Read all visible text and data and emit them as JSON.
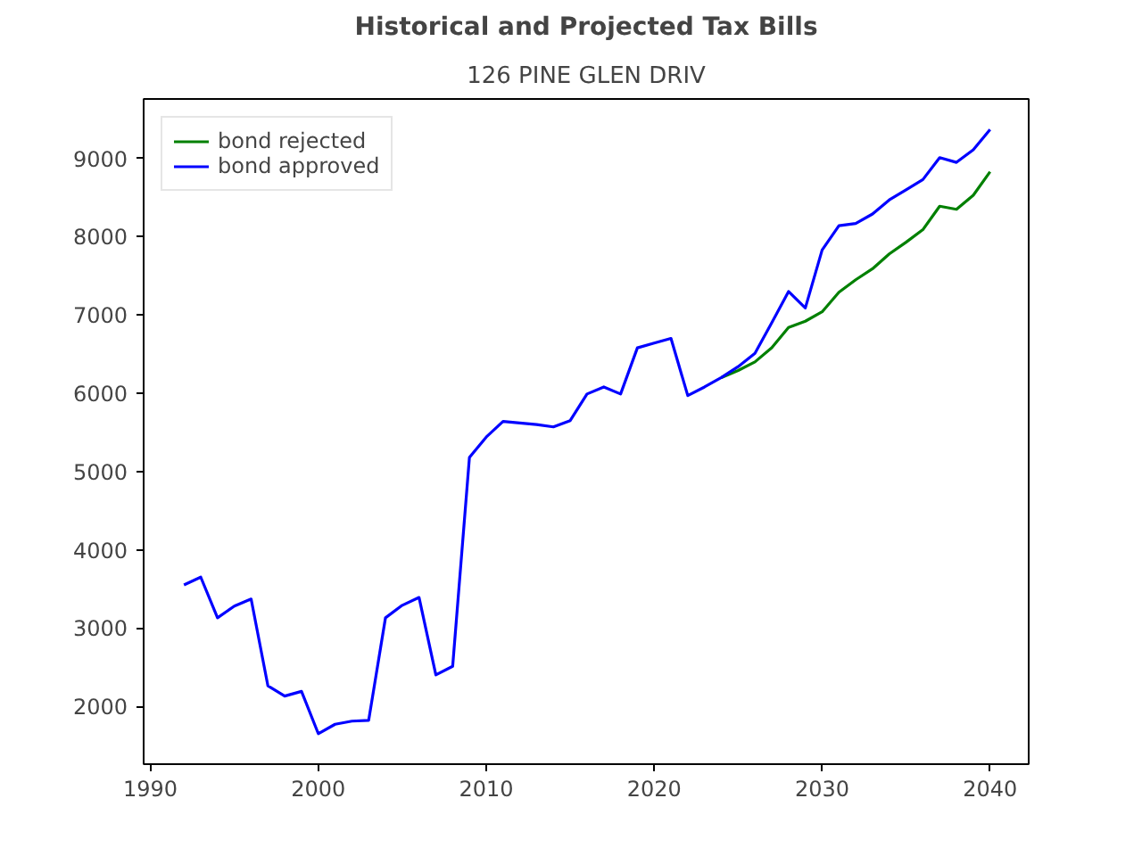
{
  "chart_data": {
    "type": "line",
    "title": "Historical and Projected Tax Bills",
    "subtitle": "126 PINE GLEN DRIV",
    "x": [
      1992,
      1993,
      1994,
      1995,
      1996,
      1997,
      1998,
      1999,
      2000,
      2001,
      2002,
      2003,
      2004,
      2005,
      2006,
      2007,
      2008,
      2009,
      2010,
      2011,
      2012,
      2013,
      2014,
      2015,
      2016,
      2017,
      2018,
      2019,
      2020,
      2021,
      2022,
      2023,
      2024,
      2025,
      2026,
      2027,
      2028,
      2029,
      2030,
      2031,
      2032,
      2033,
      2034,
      2035,
      2036,
      2037,
      2038,
      2039,
      2040
    ],
    "series": [
      {
        "name": "bond rejected",
        "color": "#008000",
        "values": [
          null,
          null,
          null,
          null,
          null,
          null,
          null,
          null,
          null,
          null,
          null,
          null,
          null,
          null,
          null,
          null,
          null,
          null,
          null,
          null,
          null,
          null,
          null,
          null,
          null,
          null,
          null,
          null,
          null,
          null,
          null,
          null,
          6200,
          6290,
          6400,
          6580,
          6840,
          6920,
          7040,
          7290,
          7450,
          7590,
          7780,
          7930,
          8090,
          8390,
          8350,
          8530,
          8830
        ]
      },
      {
        "name": "bond approved",
        "color": "#0000ff",
        "values": [
          3550,
          3650,
          3130,
          3280,
          3370,
          2260,
          2130,
          2190,
          1650,
          1770,
          1810,
          1820,
          3130,
          3290,
          3390,
          2400,
          2510,
          5180,
          5440,
          5640,
          5620,
          5600,
          5570,
          5650,
          5990,
          6080,
          5990,
          6580,
          6640,
          6700,
          5970,
          6080,
          6200,
          6340,
          6510,
          6900,
          7300,
          7090,
          7830,
          8140,
          8170,
          8290,
          8470,
          8600,
          8730,
          9010,
          8950,
          9110,
          9370
        ]
      }
    ],
    "xlim": [
      1989.6,
      2042.3
    ],
    "ylim": [
      1260,
      9760
    ],
    "xticks": [
      1990,
      2000,
      2010,
      2020,
      2030,
      2040
    ],
    "yticks": [
      2000,
      3000,
      4000,
      5000,
      6000,
      7000,
      8000,
      9000
    ],
    "grid": false,
    "legend": "top left",
    "marker": "none",
    "line_style": "solid"
  }
}
